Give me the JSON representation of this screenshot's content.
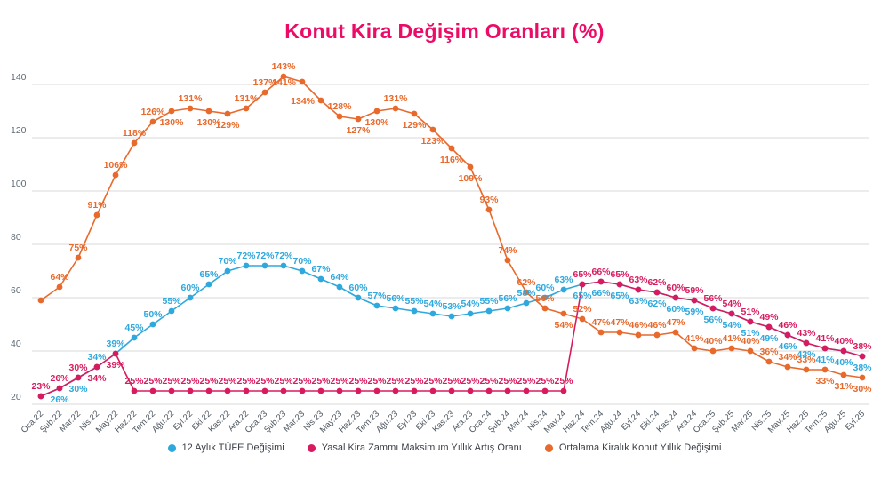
{
  "title": "Konut Kira Değişim Oranları (%)",
  "legend": [
    {
      "label": "12 Aylık TÜFE Değişimi",
      "color": "#2ea8dd"
    },
    {
      "label": "Yasal Kira Zammı Maksimum Yıllık Artış Oranı",
      "color": "#d81b5f"
    },
    {
      "label": "Ortalama Kiralık Konut Yıllık Değişimi",
      "color": "#e8692c"
    }
  ],
  "colors": {
    "title": "#ec0c67",
    "grid": "#dadada",
    "y_tick_text": "#5f6b76",
    "x_tick_text": "#4d5660",
    "background": "#ffffff"
  },
  "chart_data": {
    "type": "line",
    "title": "Konut Kira Değişim Oranları (%)",
    "xlabel": "",
    "ylabel": "",
    "ylim": [
      20,
      150
    ],
    "yticks": [
      20,
      40,
      60,
      80,
      100,
      120,
      140
    ],
    "grid": "horizontal",
    "legend_position": "bottom",
    "point_label_suffix": "%",
    "x": [
      "Oca.22",
      "Şub.22",
      "Mar.22",
      "Nis.22",
      "May.22",
      "Haz.22",
      "Tem.22",
      "Ağu.22",
      "Eyl.22",
      "Eki.22",
      "Kas.22",
      "Ara.22",
      "Oca.23",
      "Şub.23",
      "Mar.23",
      "Nis.23",
      "May.23",
      "Haz.23",
      "Tem.23",
      "Ağu.23",
      "Eyl.23",
      "Eki.23",
      "Kas.23",
      "Ara.23",
      "Oca.24",
      "Şub.24",
      "Mar.24",
      "Nis.24",
      "May.24",
      "Haz.24",
      "Tem.24",
      "Ağu.24",
      "Eyl.24",
      "Eki.24",
      "Kas.24",
      "Ara.24",
      "Oca.25",
      "Şub.25",
      "Mar.25",
      "Nis.25",
      "May.25",
      "Haz.25",
      "Tem.25",
      "Ağu.25",
      "Eyl.25"
    ],
    "series": [
      {
        "name": "12 Aylık TÜFE Değişimi",
        "color": "#2ea8dd",
        "values": [
          23,
          26,
          30,
          34,
          39,
          45,
          50,
          55,
          60,
          65,
          70,
          72,
          72,
          72,
          70,
          67,
          64,
          60,
          57,
          56,
          55,
          54,
          53,
          54,
          55,
          56,
          58,
          60,
          63,
          65,
          66,
          65,
          63,
          62,
          60,
          59,
          56,
          54,
          51,
          49,
          46,
          43,
          41,
          40,
          38
        ],
        "label_pos": [
          null,
          "below",
          "below",
          "above",
          "above",
          "above",
          "above",
          "above",
          "above",
          "above",
          "above",
          "above",
          "above",
          "above",
          "above",
          "above",
          "above",
          "above",
          "above",
          "above",
          "above",
          "above",
          "above",
          "above",
          "above",
          "above",
          "above",
          "above",
          "above",
          "below",
          "below",
          "below",
          "below",
          "below",
          "below",
          "below",
          "below",
          "below",
          "below",
          "below",
          "below",
          "below",
          "below",
          "below",
          "below"
        ]
      },
      {
        "name": "Yasal Kira Zammı Maksimum Yıllık Artış Oranı",
        "color": "#d81b5f",
        "values": [
          23,
          26,
          30,
          34,
          39,
          25,
          25,
          25,
          25,
          25,
          25,
          25,
          25,
          25,
          25,
          25,
          25,
          25,
          25,
          25,
          25,
          25,
          25,
          25,
          25,
          25,
          25,
          25,
          25,
          65,
          66,
          65,
          63,
          62,
          60,
          59,
          56,
          54,
          51,
          49,
          46,
          43,
          41,
          40,
          38
        ],
        "label_pos": [
          "above",
          "above",
          "above",
          "below",
          "below",
          "above",
          "above",
          "above",
          "above",
          "above",
          "above",
          "above",
          "above",
          "above",
          "above",
          "above",
          "above",
          "above",
          "above",
          "above",
          "above",
          "above",
          "above",
          "above",
          "above",
          "above",
          "above",
          "above",
          "above",
          "above",
          "above",
          "above",
          "above",
          "above",
          "above",
          "above",
          "above",
          "above",
          "above",
          "above",
          "above",
          "above",
          "above",
          "above",
          "above"
        ]
      },
      {
        "name": "Ortalama Kiralık Konut Yıllık Değişimi",
        "color": "#e8692c",
        "values": [
          59,
          64,
          75,
          91,
          106,
          118,
          126,
          130,
          131,
          130,
          129,
          131,
          137,
          143,
          141,
          134,
          128,
          127,
          130,
          131,
          129,
          123,
          116,
          109,
          93,
          74,
          62,
          56,
          54,
          52,
          47,
          47,
          46,
          46,
          47,
          41,
          40,
          41,
          40,
          36,
          34,
          33,
          33,
          31,
          30
        ],
        "label_pos": [
          null,
          "above",
          "above",
          "above",
          "above",
          "above",
          "above",
          "below",
          "above",
          "below",
          "below",
          "above",
          "above",
          "above",
          "left",
          "left",
          "above",
          "below",
          "below",
          "above",
          "below",
          "below",
          "below",
          "below",
          "above",
          "above",
          "above",
          "above",
          "below",
          "above",
          "above",
          "above",
          "above",
          "above",
          "above",
          "above",
          "above",
          "above",
          "above",
          "above",
          "above",
          "above",
          "below",
          "below",
          "below"
        ]
      }
    ]
  }
}
